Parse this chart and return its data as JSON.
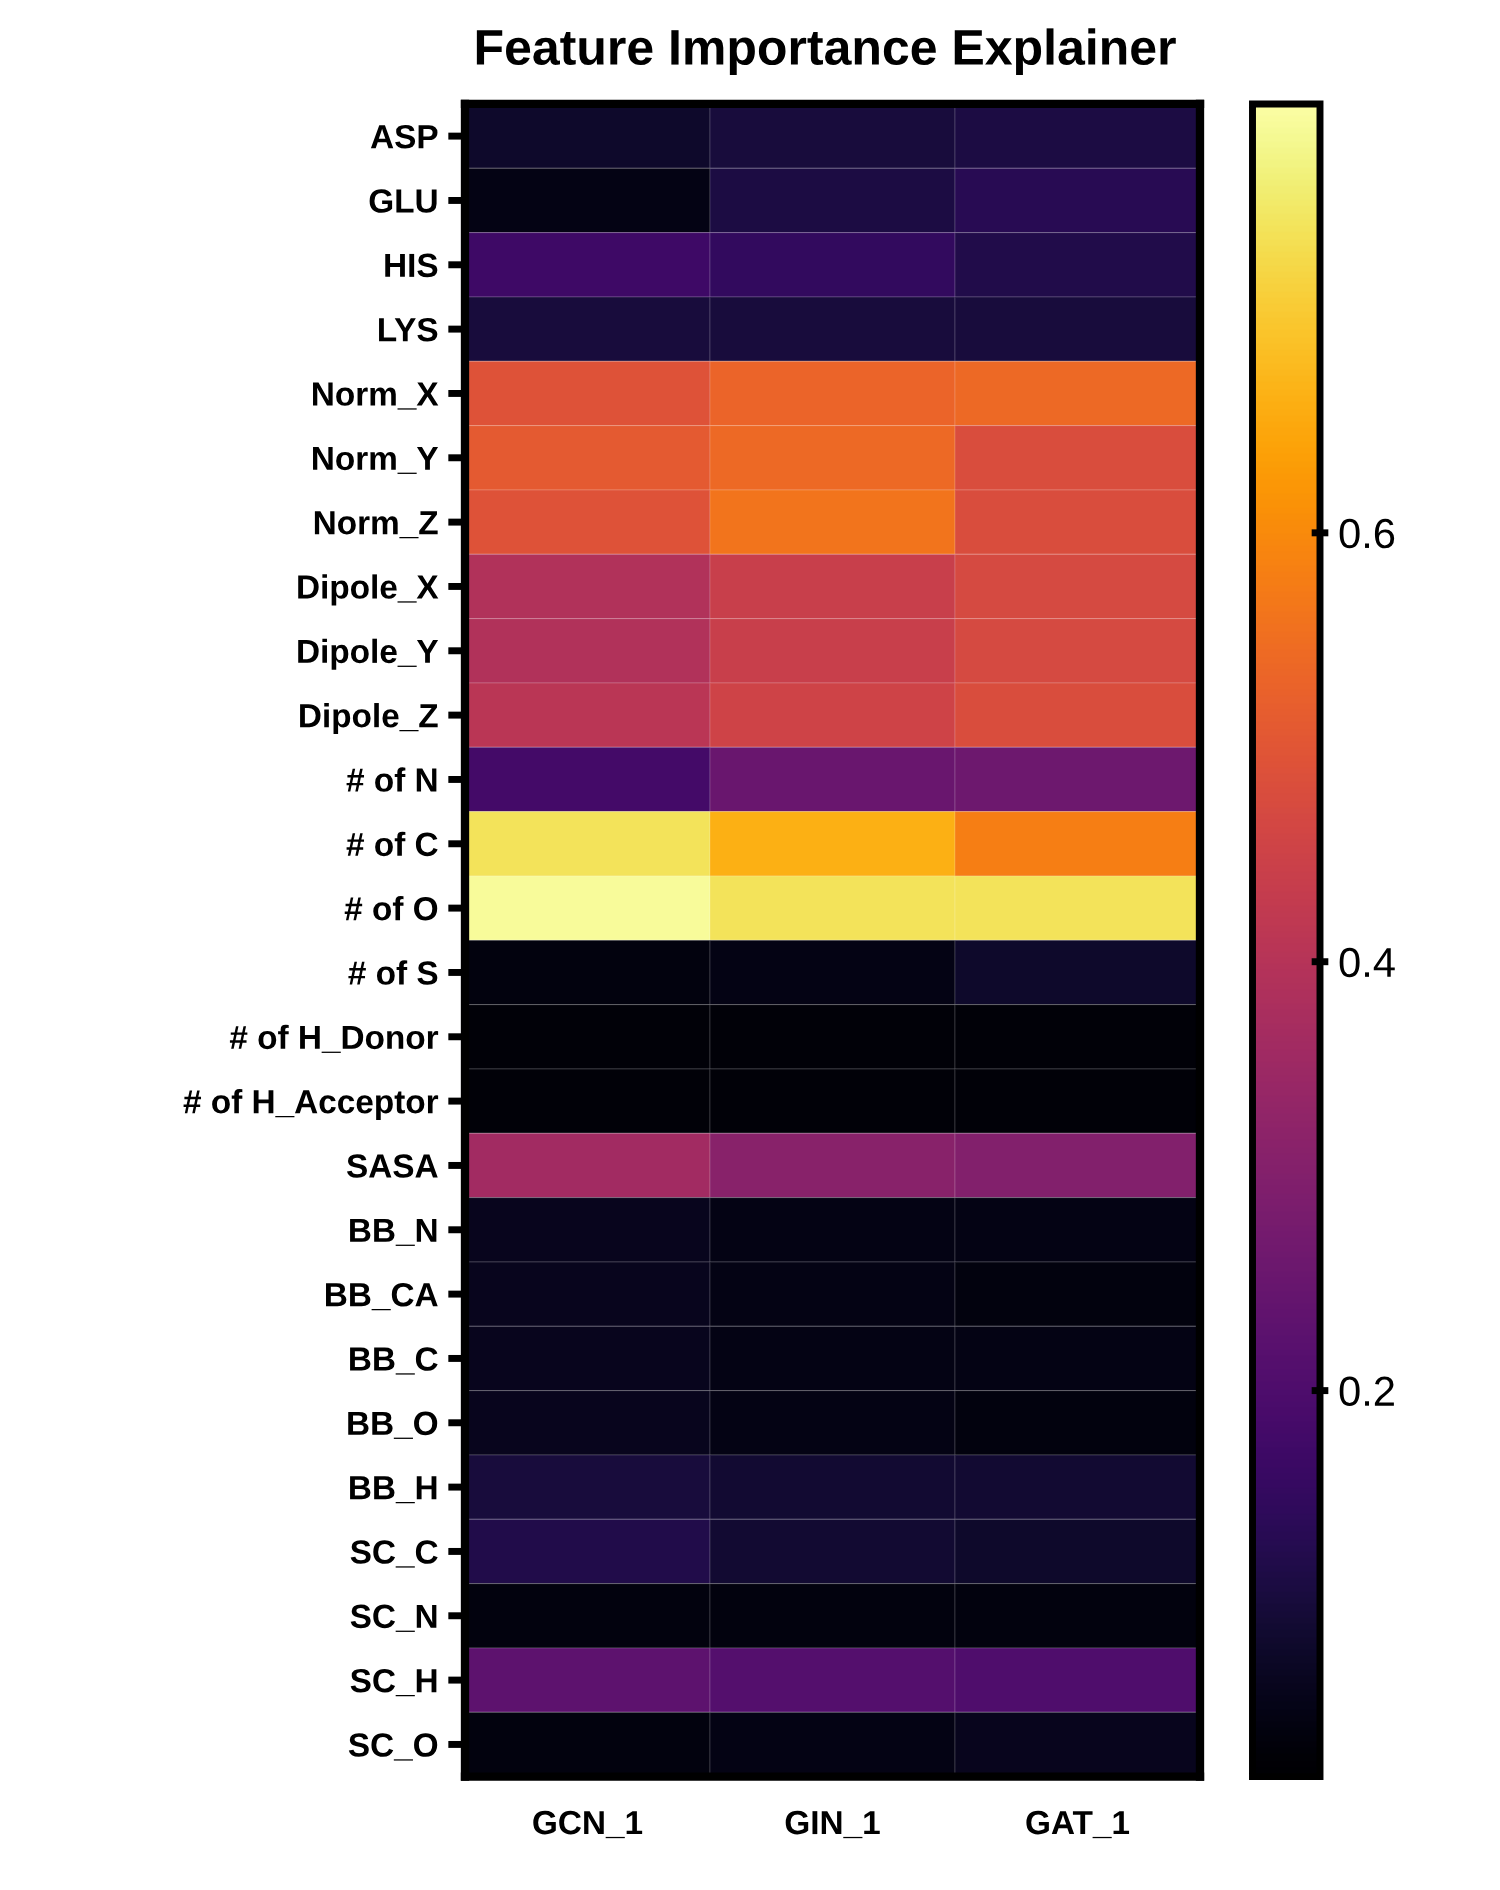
{
  "chart_data": {
    "type": "heatmap",
    "title": "Feature Importance Explainer",
    "categories": [
      "GCN_1",
      "GIN_1",
      "GAT_1"
    ],
    "y_categories": [
      "ASP",
      "GLU",
      "HIS",
      "LYS",
      "Norm_X",
      "Norm_Y",
      "Norm_Z",
      "Dipole_X",
      "Dipole_Y",
      "Dipole_Z",
      "# of N",
      "# of C",
      "# of O",
      "# of S",
      "# of H_Donor",
      "# of H_Acceptor",
      "SASA",
      "BB_N",
      "BB_CA",
      "BB_C",
      "BB_O",
      "BB_H",
      "SC_C",
      "SC_N",
      "SC_H",
      "SC_O"
    ],
    "cells": [
      [
        0.08,
        0.1,
        0.11
      ],
      [
        0.05,
        0.11,
        0.13
      ],
      [
        0.17,
        0.15,
        0.12
      ],
      [
        0.1,
        0.1,
        0.1
      ],
      [
        0.49,
        0.53,
        0.54
      ],
      [
        0.51,
        0.54,
        0.48
      ],
      [
        0.49,
        0.56,
        0.48
      ],
      [
        0.39,
        0.44,
        0.47
      ],
      [
        0.39,
        0.44,
        0.47
      ],
      [
        0.41,
        0.45,
        0.48
      ],
      [
        0.18,
        0.25,
        0.26
      ],
      [
        0.74,
        0.66,
        0.58
      ],
      [
        0.79,
        0.74,
        0.74
      ],
      [
        0.04,
        0.05,
        0.08
      ],
      [
        0.03,
        0.03,
        0.03
      ],
      [
        0.03,
        0.03,
        0.03
      ],
      [
        0.36,
        0.31,
        0.3
      ],
      [
        0.06,
        0.05,
        0.05
      ],
      [
        0.06,
        0.05,
        0.04
      ],
      [
        0.06,
        0.05,
        0.05
      ],
      [
        0.06,
        0.05,
        0.04
      ],
      [
        0.1,
        0.09,
        0.09
      ],
      [
        0.12,
        0.09,
        0.08
      ],
      [
        0.04,
        0.04,
        0.04
      ],
      [
        0.23,
        0.21,
        0.2
      ],
      [
        0.04,
        0.05,
        0.06
      ]
    ],
    "clim": [
      0.02,
      0.8
    ],
    "cticks": [
      0.2,
      0.4,
      0.6
    ]
  }
}
